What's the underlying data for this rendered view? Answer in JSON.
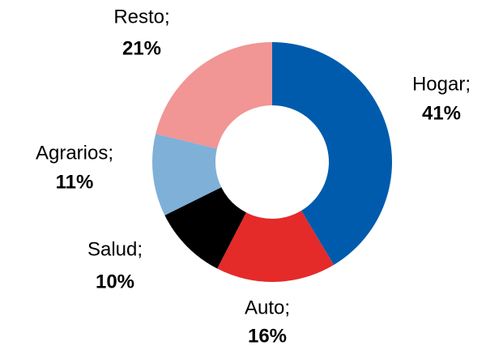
{
  "chart_data": {
    "type": "donut",
    "categories": [
      "Hogar;",
      "Auto;",
      "Salud;",
      "Agrarios;",
      "Resto;"
    ],
    "values": [
      41,
      16,
      10,
      11,
      21
    ],
    "value_labels": [
      "41%",
      "16%",
      "10%",
      "11%",
      "21%"
    ],
    "colors": [
      "#005BAC",
      "#E52A2A",
      "#000000",
      "#7FB0D8",
      "#F19595"
    ]
  }
}
